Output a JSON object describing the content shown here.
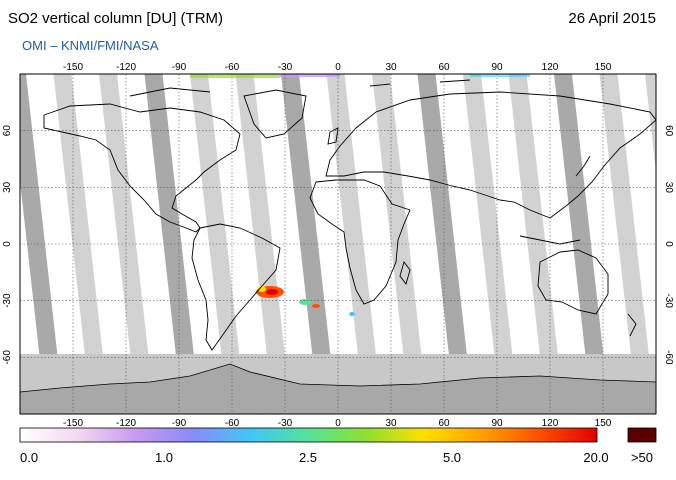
{
  "header": {
    "title": "SO2 vertical column [DU] (TRM)",
    "date": "26 April 2015",
    "subtitle": "OMI  –  KNMI/FMI/NASA"
  },
  "map": {
    "projection": "equirectangular",
    "lon_range": [
      -180,
      180
    ],
    "lat_range": [
      -90,
      90
    ],
    "lon_ticks": [
      "-150",
      "-120",
      "-90",
      "-60",
      "-30",
      "0",
      "30",
      "60",
      "90",
      "120",
      "150"
    ],
    "lat_ticks": [
      "60",
      "30",
      "0",
      "-30",
      "-60"
    ],
    "gridlines": true,
    "features": [
      "coastlines",
      "orbit-swaths",
      "so2-plume-south-america"
    ]
  },
  "colorbar": {
    "labels": [
      "0.0",
      "1.0",
      "2.5",
      "5.0",
      "20.0",
      ">50"
    ],
    "colors": [
      "#ffffff",
      "#f4d8f2",
      "#c89af0",
      "#8a8cf5",
      "#3fc8f5",
      "#55e39a",
      "#8fe030",
      "#ffe000",
      "#ffa000",
      "#ff5000",
      "#e00000"
    ],
    "over_color": "#5a0000"
  }
}
